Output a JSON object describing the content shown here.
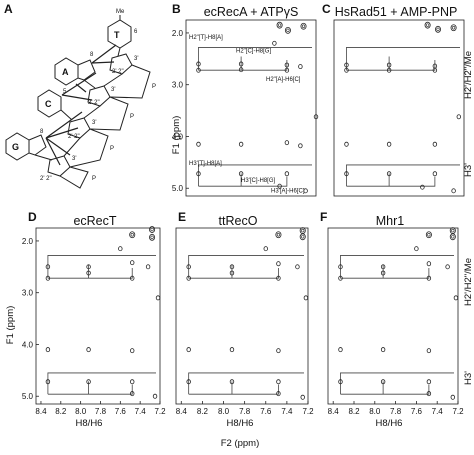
{
  "figure": {
    "panel_letters": [
      "A",
      "B",
      "C",
      "D",
      "E",
      "F"
    ],
    "schematic": {
      "bases": [
        "T",
        "A",
        "C",
        "G"
      ],
      "labels": {
        "me": "Me",
        "six": "6",
        "eight_a": "8",
        "eight_g": "8",
        "five": "5",
        "p": "P",
        "three_prime": "3'",
        "two_prime": "2' 2\""
      }
    },
    "y_axis_title": "F1 (ppm)",
    "x_axis_title": "H8/H6",
    "bottom_title": "F2 (ppm)",
    "right_labels": [
      "H2'/H2\"/Me",
      "H3'"
    ]
  },
  "chart_data": [
    {
      "type": "scatter",
      "panel": "B",
      "title": "ecRecA + ATPγS",
      "ylabel": "F1 (ppm)",
      "xlim": [
        8.45,
        7.2
      ],
      "ylim": [
        1.75,
        5.15
      ],
      "yticks": [
        "2.0",
        "3.0",
        "4.0",
        "5.0"
      ],
      "xticks": [],
      "annotations": [
        "H2\"[T]-H8[A]",
        "H2\"[C]-H8[G]",
        "H2\"[A]-H6[C]",
        "H3'[T]-H8[A]",
        "H3'[C]-H8[G]",
        "H3'[A]-H6[C]"
      ],
      "peaks": [
        {
          "x": 7.55,
          "y": 1.85
        },
        {
          "x": 7.47,
          "y": 1.95
        },
        {
          "x": 7.32,
          "y": 1.87
        },
        {
          "x": 7.6,
          "y": 2.2
        },
        {
          "x": 8.33,
          "y": 2.6
        },
        {
          "x": 8.33,
          "y": 2.72
        },
        {
          "x": 7.92,
          "y": 2.6
        },
        {
          "x": 7.92,
          "y": 2.71
        },
        {
          "x": 7.48,
          "y": 2.62
        },
        {
          "x": 7.48,
          "y": 2.72
        },
        {
          "x": 7.35,
          "y": 2.65
        },
        {
          "x": 7.2,
          "y": 3.62
        },
        {
          "x": 8.33,
          "y": 4.15
        },
        {
          "x": 7.92,
          "y": 4.15
        },
        {
          "x": 7.48,
          "y": 4.12
        },
        {
          "x": 7.35,
          "y": 4.18
        },
        {
          "x": 8.33,
          "y": 4.72
        },
        {
          "x": 7.92,
          "y": 4.72
        },
        {
          "x": 7.48,
          "y": 4.72
        },
        {
          "x": 7.55,
          "y": 4.96
        },
        {
          "x": 7.3,
          "y": 5.05
        }
      ]
    },
    {
      "type": "scatter",
      "panel": "C",
      "title": "HsRad51 + AMP-PNP",
      "xlim": [
        8.45,
        7.2
      ],
      "ylim": [
        1.75,
        5.15
      ],
      "yticks": [],
      "xticks": [],
      "peaks": [
        {
          "x": 7.55,
          "y": 1.85
        },
        {
          "x": 7.45,
          "y": 1.93
        },
        {
          "x": 7.3,
          "y": 1.9
        },
        {
          "x": 8.33,
          "y": 2.62
        },
        {
          "x": 8.33,
          "y": 2.72
        },
        {
          "x": 7.92,
          "y": 2.62
        },
        {
          "x": 7.92,
          "y": 2.72
        },
        {
          "x": 7.48,
          "y": 2.64
        },
        {
          "x": 7.48,
          "y": 2.72
        },
        {
          "x": 7.25,
          "y": 3.62
        },
        {
          "x": 8.33,
          "y": 4.15
        },
        {
          "x": 7.92,
          "y": 4.15
        },
        {
          "x": 7.48,
          "y": 4.15
        },
        {
          "x": 8.33,
          "y": 4.72
        },
        {
          "x": 7.92,
          "y": 4.72
        },
        {
          "x": 7.48,
          "y": 4.72
        },
        {
          "x": 7.6,
          "y": 4.98
        },
        {
          "x": 7.3,
          "y": 5.05
        }
      ]
    },
    {
      "type": "scatter",
      "panel": "D",
      "title": "ecRecT",
      "ylabel": "F1 (ppm)",
      "xlabel": "H8/H6",
      "xlim": [
        8.45,
        7.2
      ],
      "ylim": [
        1.75,
        5.15
      ],
      "yticks": [
        "2.0",
        "3.0",
        "4.0",
        "5.0"
      ],
      "xticks": [
        "8.4",
        "8.2",
        "8.0",
        "7.8",
        "7.6",
        "7.4",
        "7.2"
      ],
      "peaks": [
        {
          "x": 7.48,
          "y": 1.88
        },
        {
          "x": 7.28,
          "y": 1.78
        },
        {
          "x": 7.28,
          "y": 1.93
        },
        {
          "x": 7.6,
          "y": 2.15
        },
        {
          "x": 8.33,
          "y": 2.5
        },
        {
          "x": 8.33,
          "y": 2.72
        },
        {
          "x": 7.92,
          "y": 2.5
        },
        {
          "x": 7.92,
          "y": 2.62
        },
        {
          "x": 7.48,
          "y": 2.42
        },
        {
          "x": 7.48,
          "y": 2.72
        },
        {
          "x": 7.32,
          "y": 2.5
        },
        {
          "x": 7.22,
          "y": 3.1
        },
        {
          "x": 8.33,
          "y": 4.1
        },
        {
          "x": 7.92,
          "y": 4.1
        },
        {
          "x": 7.48,
          "y": 4.12
        },
        {
          "x": 8.33,
          "y": 4.72
        },
        {
          "x": 7.92,
          "y": 4.72
        },
        {
          "x": 7.48,
          "y": 4.72
        },
        {
          "x": 7.48,
          "y": 4.95
        },
        {
          "x": 7.25,
          "y": 5.0
        }
      ]
    },
    {
      "type": "scatter",
      "panel": "E",
      "title": "ttRecO",
      "xlabel": "H8/H6",
      "xlim": [
        8.45,
        7.2
      ],
      "ylim": [
        1.75,
        5.15
      ],
      "yticks": [],
      "xticks": [
        "8.4",
        "8.2",
        "8.0",
        "7.8",
        "7.6",
        "7.4",
        "7.2"
      ],
      "peaks": [
        {
          "x": 7.48,
          "y": 1.88
        },
        {
          "x": 7.25,
          "y": 1.8
        },
        {
          "x": 7.25,
          "y": 1.92
        },
        {
          "x": 7.6,
          "y": 2.15
        },
        {
          "x": 8.33,
          "y": 2.5
        },
        {
          "x": 8.33,
          "y": 2.72
        },
        {
          "x": 7.92,
          "y": 2.5
        },
        {
          "x": 7.92,
          "y": 2.62
        },
        {
          "x": 7.48,
          "y": 2.44
        },
        {
          "x": 7.48,
          "y": 2.72
        },
        {
          "x": 7.3,
          "y": 2.5
        },
        {
          "x": 7.22,
          "y": 3.1
        },
        {
          "x": 8.33,
          "y": 4.1
        },
        {
          "x": 7.92,
          "y": 4.1
        },
        {
          "x": 7.48,
          "y": 4.12
        },
        {
          "x": 8.33,
          "y": 4.72
        },
        {
          "x": 7.92,
          "y": 4.72
        },
        {
          "x": 7.48,
          "y": 4.72
        },
        {
          "x": 7.48,
          "y": 4.95
        },
        {
          "x": 7.25,
          "y": 5.02
        }
      ]
    },
    {
      "type": "scatter",
      "panel": "F",
      "title": "Mhr1",
      "xlabel": "H8/H6",
      "xlim": [
        8.45,
        7.2
      ],
      "ylim": [
        1.75,
        5.15
      ],
      "yticks": [],
      "xticks": [
        "8.4",
        "8.2",
        "8.0",
        "7.8",
        "7.6",
        "7.4",
        "7.2"
      ],
      "peaks": [
        {
          "x": 7.48,
          "y": 1.88
        },
        {
          "x": 7.25,
          "y": 1.8
        },
        {
          "x": 7.25,
          "y": 1.92
        },
        {
          "x": 7.6,
          "y": 2.15
        },
        {
          "x": 8.33,
          "y": 2.5
        },
        {
          "x": 8.33,
          "y": 2.72
        },
        {
          "x": 7.92,
          "y": 2.5
        },
        {
          "x": 7.92,
          "y": 2.62
        },
        {
          "x": 7.48,
          "y": 2.44
        },
        {
          "x": 7.48,
          "y": 2.72
        },
        {
          "x": 7.3,
          "y": 2.5
        },
        {
          "x": 7.22,
          "y": 3.1
        },
        {
          "x": 8.33,
          "y": 4.1
        },
        {
          "x": 7.92,
          "y": 4.1
        },
        {
          "x": 7.48,
          "y": 4.12
        },
        {
          "x": 8.33,
          "y": 4.72
        },
        {
          "x": 7.92,
          "y": 4.72
        },
        {
          "x": 7.48,
          "y": 4.72
        },
        {
          "x": 7.48,
          "y": 4.95
        },
        {
          "x": 7.25,
          "y": 5.02
        }
      ]
    }
  ]
}
